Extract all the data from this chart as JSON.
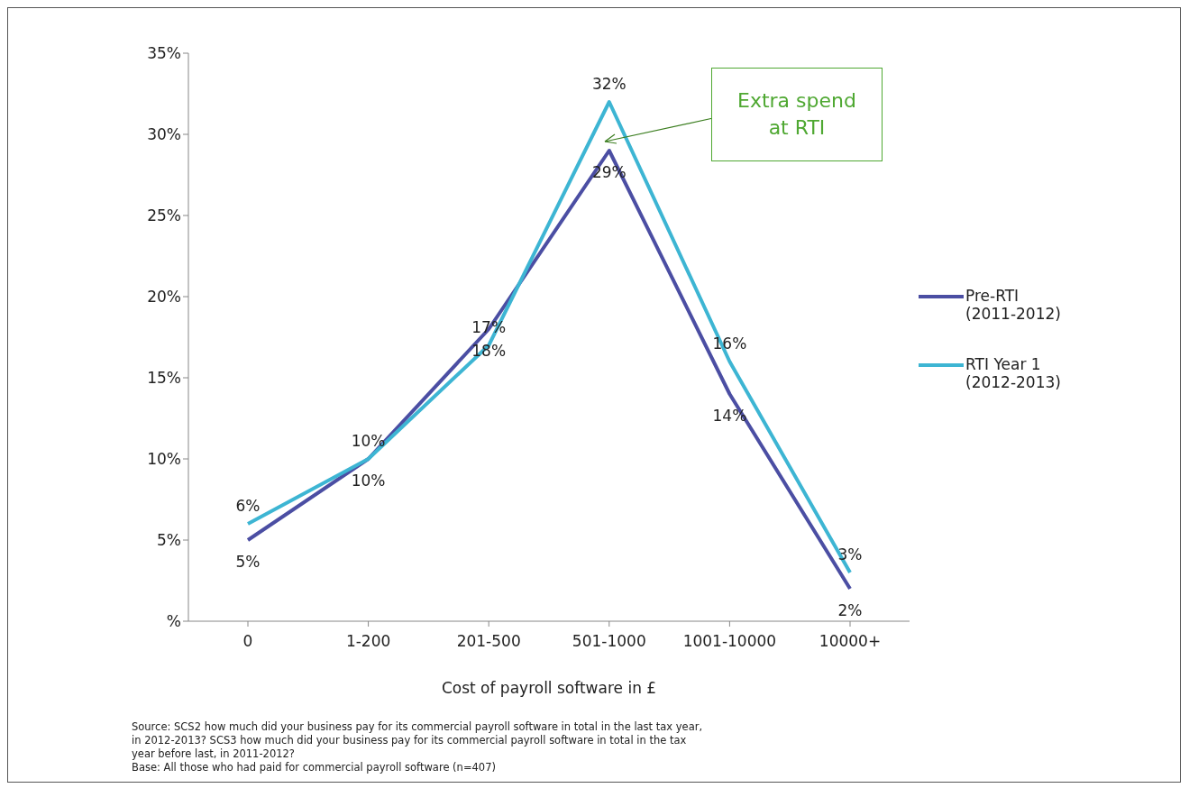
{
  "chart_data": {
    "type": "line",
    "xlabel": "Cost of payroll software in £",
    "categories": [
      "0",
      "1-200",
      "201-500",
      "501-1000",
      "1001-10000",
      "10000+"
    ],
    "series": [
      {
        "name": "Pre-RTI (2011-2012)",
        "color": "#4b4ea3",
        "values": [
          5,
          10,
          18,
          29,
          14,
          2
        ],
        "value_labels": [
          "5%",
          "10%",
          "18%",
          "29%",
          "14%",
          "2%"
        ]
      },
      {
        "name": "RTI Year 1 (2012-2013)",
        "color": "#3db5d3",
        "values": [
          6,
          10,
          17,
          32,
          16,
          3
        ],
        "value_labels": [
          "6%",
          "10%",
          "17%",
          "32%",
          "16%",
          "3%"
        ]
      }
    ],
    "ylim": [
      0,
      35
    ],
    "yticks": [
      {
        "value": 0,
        "label": "%"
      },
      {
        "value": 5,
        "label": "5%"
      },
      {
        "value": 10,
        "label": "10%"
      },
      {
        "value": 15,
        "label": "15%"
      },
      {
        "value": 20,
        "label": "20%"
      },
      {
        "value": 25,
        "label": "25%"
      },
      {
        "value": 30,
        "label": "30%"
      },
      {
        "value": 35,
        "label": "35%"
      }
    ],
    "legend": "right",
    "marker": "none",
    "annotations": [
      "Extra spend at RTI",
      "Source: SCS2 how much did your business pay for its commercial payroll software in total in the last tax year, in 2012-2013? SCS3 how much did your business pay for its commercial payroll software in total in the tax year before last, in 2011-2012?",
      "Base: All those who had paid for commercial payroll software (n=407)"
    ]
  }
}
